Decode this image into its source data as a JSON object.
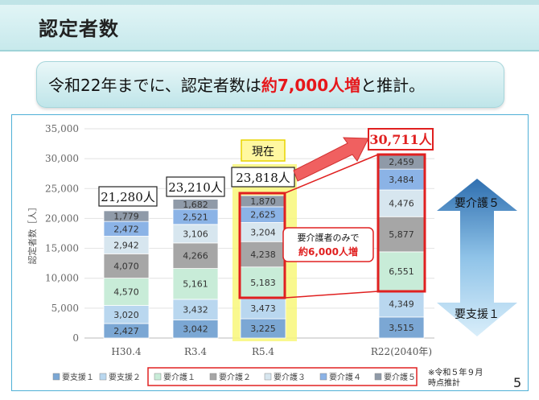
{
  "slide": {
    "title": "認定者数",
    "headline_pre": "令和22年までに、認定者数は",
    "headline_highlight": "約7,000人増",
    "headline_post": "と推計。",
    "page_number": "5",
    "footnote_line1": "※令和５年９月",
    "footnote_line2": "時点推計"
  },
  "chart_data": {
    "type": "bar",
    "stacked": true,
    "title": "",
    "xlabel": "",
    "ylabel": "認定者数［人］",
    "ylim": [
      0,
      35000
    ],
    "yticks": [
      "0",
      "5,000",
      "10,000",
      "15,000",
      "20,000",
      "25,000",
      "30,000",
      "35,000"
    ],
    "grid": true,
    "legend_position": "bottom",
    "categories": [
      "H30.4",
      "R3.4",
      "R5.4",
      "R22(2040年)"
    ],
    "series": [
      {
        "name": "要支援１",
        "color": "#7ba7d4",
        "values": [
          2427,
          3042,
          3225,
          3515
        ],
        "labels": [
          "2,427",
          "3,042",
          "3,225",
          "3,515"
        ]
      },
      {
        "name": "要支援２",
        "color": "#b9d7ef",
        "values": [
          3020,
          3432,
          3473,
          4349
        ],
        "labels": [
          "3,020",
          "3,432",
          "3,473",
          "4,349"
        ]
      },
      {
        "name": "要介護１",
        "color": "#c8ecd8",
        "values": [
          4570,
          5161,
          5183,
          6551
        ],
        "labels": [
          "4,570",
          "5,161",
          "5,183",
          "6,551"
        ]
      },
      {
        "name": "要介護２",
        "color": "#a6a6a6",
        "values": [
          4070,
          4266,
          4238,
          5877
        ],
        "labels": [
          "4,070",
          "4,266",
          "4,238",
          "5,877"
        ]
      },
      {
        "name": "要介護３",
        "color": "#d7e6ef",
        "values": [
          2942,
          3106,
          3204,
          4476
        ],
        "labels": [
          "2,942",
          "3,106",
          "3,204",
          "4,476"
        ]
      },
      {
        "name": "要介護４",
        "color": "#8bb3e6",
        "values": [
          2472,
          2521,
          2625,
          3484
        ],
        "labels": [
          "2,472",
          "2,521",
          "2,625",
          "3,484"
        ]
      },
      {
        "name": "要介護５",
        "color": "#8f9aa8",
        "values": [
          1779,
          1682,
          1870,
          2459
        ],
        "labels": [
          "1,779",
          "1,682",
          "1,870",
          "2,459"
        ]
      }
    ],
    "totals": [
      21280,
      23210,
      23818,
      30711
    ],
    "total_labels": [
      "21,280人",
      "23,210人",
      "23,818人",
      "30,711人"
    ],
    "annotations": {
      "current": "現在",
      "care_only_line1": "要介護者のみで",
      "care_only_line2": "約6,000人増",
      "arrow_top": "要介護５",
      "arrow_bottom": "要支援１"
    }
  }
}
